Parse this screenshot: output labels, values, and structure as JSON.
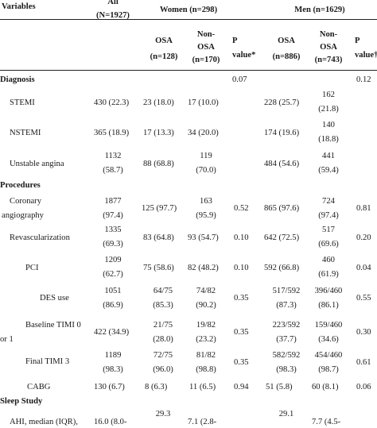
{
  "header": {
    "variables": "Variables",
    "all_line1": "All",
    "all_line2": "(N=1927)",
    "women": "Women (n=298)",
    "men": "Men (n=1629)",
    "w_osa_1": "OSA",
    "w_osa_2": "(n=128)",
    "w_non_1": "Non-",
    "w_non_2": "OSA",
    "w_non_3": "(n=170)",
    "w_p_1": "P",
    "w_p_2": "value*",
    "m_osa_1": "OSA",
    "m_osa_2": "(n=886)",
    "m_non_1": "Non-",
    "m_non_2": "OSA",
    "m_non_3": "(n=743)",
    "m_p_1": "P",
    "m_p_2": "value†"
  },
  "sections": {
    "diagnosis": "Diagnosis",
    "diagnosis_p_women": "0.07",
    "diagnosis_p_men": "0.12",
    "procedures": "Procedures",
    "sleep_study": "Sleep Study"
  },
  "rows": {
    "stemi": {
      "label": "STEMI",
      "all_1": "430 (22.3)",
      "w_osa": "23 (18.0)",
      "w_non": "17 (10.0)",
      "m_osa": "228 (25.7)",
      "m_non_1": "162",
      "m_non_2": "(21.8)"
    },
    "nstemi": {
      "label": "NSTEMI",
      "all_1": "365 (18.9)",
      "w_osa": "17 (13.3)",
      "w_non": "34 (20.0)",
      "m_osa": "174 (19.6)",
      "m_non_1": "140",
      "m_non_2": "(18.8)"
    },
    "unstable": {
      "label": "Unstable angina",
      "all_1": "1132",
      "all_2": "(58.7)",
      "w_osa": "88 (68.8)",
      "w_non_1": "119",
      "w_non_2": "(70.0)",
      "m_osa": "484 (54.6)",
      "m_non_1": "441",
      "m_non_2": "(59.4)"
    },
    "coronary": {
      "label_1": "Coronary",
      "label_2": "angiography",
      "all_1": "1877",
      "all_2": "(97.4)",
      "w_osa": "125 (97.7)",
      "w_non_1": "163",
      "w_non_2": "(95.9)",
      "w_p": "0.52",
      "m_osa": "865 (97.6)",
      "m_non_1": "724",
      "m_non_2": "(97.4)",
      "m_p": "0.81"
    },
    "revasc": {
      "label": "Revascularization",
      "all_1": "1335",
      "all_2": "(69.3)",
      "w_osa": "83 (64.8)",
      "w_non": "93 (54.7)",
      "w_p": "0.10",
      "m_osa": "642 (72.5)",
      "m_non_1": "517",
      "m_non_2": "(69.6)",
      "m_p": "0.20"
    },
    "pci": {
      "label": "PCI",
      "all_1": "1209",
      "all_2": "(62.7)",
      "w_osa": "75 (58.6)",
      "w_non": "82 (48.2)",
      "w_p": "0.10",
      "m_osa": "592 (66.8)",
      "m_non_1": "460",
      "m_non_2": "(61.9)",
      "m_p": "0.04"
    },
    "des": {
      "label": "DES use",
      "all_1": "1051",
      "all_2": "(86.9)",
      "w_osa_1": "64/75",
      "w_osa_2": "(85.3)",
      "w_non_1": "74/82",
      "w_non_2": "(90.2)",
      "w_p": "0.35",
      "m_osa_1": "517/592",
      "m_osa_2": "(87.3)",
      "m_non_1": "396/460",
      "m_non_2": "(86.1)",
      "m_p": "0.55"
    },
    "timi0": {
      "label_1": "Baseline TIMI 0",
      "label_2": "or 1",
      "all_1": "422 (34.9)",
      "w_osa_1": "21/75",
      "w_osa_2": "(28.0)",
      "w_non_1": "19/82",
      "w_non_2": "(23.2)",
      "w_p": "0.35",
      "m_osa_1": "223/592",
      "m_osa_2": "(37.7)",
      "m_non_1": "159/460",
      "m_non_2": "(34.6)",
      "m_p": "0.30"
    },
    "timi3": {
      "label": "Final TIMI 3",
      "all_1": "1189",
      "all_2": "(98.3)",
      "w_osa_1": "72/75",
      "w_osa_2": "(96.0)",
      "w_non_1": "81/82",
      "w_non_2": "(98.8)",
      "w_p": "0.35",
      "m_osa_1": "582/592",
      "m_osa_2": "(98.3)",
      "m_non_1": "454/460",
      "m_non_2": "(98.7)",
      "m_p": "0.61"
    },
    "cabg": {
      "label": "CABG",
      "all_1": "130 (6.7)",
      "w_osa": "8 (6.3)",
      "w_non": "11 (6.5)",
      "w_p": "0.94",
      "m_osa": "51 (5.8)",
      "m_non": "60 (8.1)",
      "m_p": "0.06"
    },
    "ahi": {
      "label": "AHI, median (IQR),",
      "all_1": "16.0 (8.0-",
      "w_osa_1": "29.3",
      "w_non_1": "7.1 (2.8-",
      "m_osa_1": "29.1",
      "m_non_1": "7.7 (4.5-"
    }
  }
}
